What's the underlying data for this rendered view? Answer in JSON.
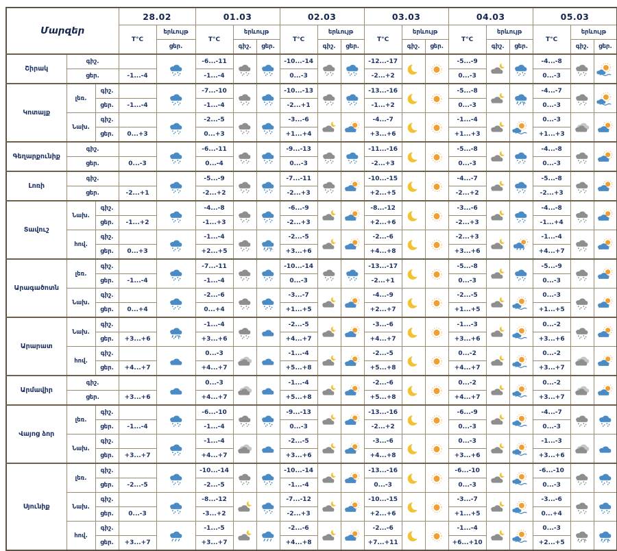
{
  "corner_title": "Մարզեր",
  "header": {
    "dates": [
      "28.02",
      "01.03",
      "02.03",
      "03.03",
      "04.03",
      "05.03"
    ],
    "temp_label": "T°C",
    "phenomenon_label": "երևույթ",
    "night_label": "գիշ.",
    "day_label": "ցեր."
  },
  "row_labels": {
    "night": "գիշ.",
    "day": "ցեր."
  },
  "day_format": [
    "temp_night",
    "temp_day",
    "icon_night",
    "icon_day"
  ],
  "icon_colors": {
    "cloud_gray": "#8e8e8e",
    "cloud_light_gray": "#c6c6c6",
    "cloud_blue": "#4a8bc6",
    "sun": "#f0a030",
    "sun_rays": "#edb15e",
    "moon": "#f1c232"
  },
  "style_colors": {
    "text_navy": "#1d3263",
    "border_inner": "#9a8a6e",
    "border_outer": "#5e5244"
  },
  "regions": [
    {
      "name": "Շիրակ",
      "zones": [
        {
          "label": null,
          "days": [
            [
              "",
              "-1...-4",
              null,
              "snow-blue"
            ],
            [
              "-6...-11",
              "-1...-4",
              "snow-gray",
              "snow-blue"
            ],
            [
              "-10...-14",
              "0...-3",
              "snow-gray",
              "snow-blue"
            ],
            [
              "-12...-17",
              "-2...+2",
              "moon",
              "sun"
            ],
            [
              "-5...-9",
              "0...-3",
              "cloud-moon",
              "snow-blue"
            ],
            [
              "-4...-8",
              "0...-3",
              "snow-gray",
              "sun-cloud-wave"
            ]
          ]
        }
      ]
    },
    {
      "name": "Կոտայք",
      "zones": [
        {
          "label": "լեռ.",
          "days": [
            [
              "",
              "-1...-4",
              null,
              "snow-blue"
            ],
            [
              "-7...-10",
              "-1...-4",
              "snow-gray",
              "snow-blue"
            ],
            [
              "-10...-13",
              "-2...+1",
              "snow-gray",
              "snow-blue"
            ],
            [
              "-13...-16",
              "-1...+2",
              "moon",
              "sun"
            ],
            [
              "-5...-8",
              "0...-3",
              "cloud-moon",
              "wetsnow-blue"
            ],
            [
              "-4...-7",
              "0...-3",
              "snow-gray",
              "sun-cloud-wave"
            ]
          ]
        },
        {
          "label": "Նախ.",
          "days": [
            [
              "",
              "0...+3",
              null,
              "snow-blue"
            ],
            [
              "-2...-5",
              "0...+3",
              "snow-gray",
              "snow-blue"
            ],
            [
              "-3...-6",
              "+1...+4",
              "cloud-moon",
              "sun-cloud"
            ],
            [
              "-4...-7",
              "+3...+6",
              "moon",
              "sun"
            ],
            [
              "-1...-4",
              "+1...+3",
              "cloud-moon",
              "sun-cloud-wave"
            ],
            [
              "0...-3",
              "+1...+3",
              "cloud-gray",
              "sun-cloud"
            ]
          ]
        }
      ]
    },
    {
      "name": "Գեղարքունիք",
      "zones": [
        {
          "label": null,
          "days": [
            [
              "",
              "0...-3",
              null,
              "snow-blue"
            ],
            [
              "-6...-11",
              "0...-4",
              "snow-gray",
              "snow-blue"
            ],
            [
              "-9...-13",
              "0...-3",
              "snow-gray",
              "snow-blue"
            ],
            [
              "-11...-16",
              "-2...+3",
              "moon",
              "sun"
            ],
            [
              "-5...-8",
              "0...-3",
              "cloud-moon",
              "snow-blue"
            ],
            [
              "-4...-8",
              "0...-3",
              "snow-gray",
              "sun-cloud"
            ]
          ]
        }
      ]
    },
    {
      "name": "Լոռի",
      "zones": [
        {
          "label": null,
          "days": [
            [
              "",
              "-2...+1",
              null,
              "snow-blue"
            ],
            [
              "-5...-9",
              "-2...+2",
              "snow-gray",
              "snow-blue"
            ],
            [
              "-7...-11",
              "-2...+3",
              "snow-gray",
              "sun-cloud"
            ],
            [
              "-10...-15",
              "+2...+5",
              "moon",
              "sun"
            ],
            [
              "-4...-7",
              "-2...+2",
              "cloud-moon",
              "snow-blue"
            ],
            [
              "-5...-8",
              "-2...+3",
              "snow-gray",
              "sun-cloud"
            ]
          ]
        }
      ]
    },
    {
      "name": "Տավուշ",
      "zones": [
        {
          "label": "Նախ.",
          "days": [
            [
              "",
              "-1...+2",
              null,
              "snow-blue"
            ],
            [
              "-4...-8",
              "-1...+3",
              "snow-gray",
              "snow-blue"
            ],
            [
              "-6...-9",
              "-2...+3",
              "cloud-moon",
              "sun-cloud"
            ],
            [
              "-8...-12",
              "+2...+6",
              "moon",
              "sun"
            ],
            [
              "-3...-6",
              "-2...+3",
              "cloud-moon",
              "snow-blue"
            ],
            [
              "-4...-8",
              "-1...+4",
              "snow-gray",
              "sun-cloud"
            ]
          ]
        },
        {
          "label": "հով.",
          "days": [
            [
              "",
              "0...+3",
              null,
              "snow-blue"
            ],
            [
              "-1...-4",
              "+2...+5",
              "snow-gray",
              "wetsnow-blue"
            ],
            [
              "-2...-5",
              "+3...+6",
              "cloud-moon",
              "sun-cloud"
            ],
            [
              "-2...-6",
              "+4...+8",
              "moon",
              "sun"
            ],
            [
              "-2...+3",
              "+3...+6",
              "cloud-moon",
              "sun-cloud-rain"
            ],
            [
              "-1...-4",
              "+4...+7",
              "snow-gray",
              "sun-cloud"
            ]
          ]
        }
      ]
    },
    {
      "name": "Արագածոտն",
      "zones": [
        {
          "label": "լեռ.",
          "days": [
            [
              "",
              "-1...-4",
              null,
              "snow-blue"
            ],
            [
              "-7...-11",
              "-1...-4",
              "snow-gray",
              "snow-blue"
            ],
            [
              "-10...-14",
              "0...-3",
              "snow-gray",
              "snow-blue"
            ],
            [
              "-13...-17",
              "-2...+1",
              "moon",
              "sun"
            ],
            [
              "-5...-8",
              "0...-3",
              "cloud-moon",
              "snow-blue"
            ],
            [
              "-5...-9",
              "0...-3",
              "snow-gray",
              "sun-cloud"
            ]
          ]
        },
        {
          "label": "Նախ.",
          "days": [
            [
              "",
              "0...+4",
              null,
              "snow-blue"
            ],
            [
              "-2...-6",
              "0...+4",
              "snow-gray",
              "snow-blue"
            ],
            [
              "-3...-7",
              "+1...+5",
              "cloud-moon",
              "sun-cloud"
            ],
            [
              "-4...-9",
              "+2...+7",
              "moon",
              "sun"
            ],
            [
              "-2...-5",
              "+1...+5",
              "cloud-moon",
              "sun-cloud-wave"
            ],
            [
              "0...-3",
              "+1...+5",
              "snow-gray",
              "sun-cloud"
            ]
          ]
        }
      ]
    },
    {
      "name": "Արարատ",
      "zones": [
        {
          "label": "Նախ.",
          "days": [
            [
              "",
              "+3...+6",
              null,
              "wetsnow-blue"
            ],
            [
              "-1...-4",
              "+3...+6",
              "snow-gray",
              "cloud-blue"
            ],
            [
              "-2...-5",
              "+4...+7",
              "cloud-moon",
              "sun-cloud"
            ],
            [
              "-3...-6",
              "+4...+7",
              "moon",
              "sun"
            ],
            [
              "-1...-3",
              "+3...+6",
              "cloud-moon",
              "sun-cloud-wave"
            ],
            [
              "0...-2",
              "+3...+6",
              "snow-gray",
              "sun-cloud"
            ]
          ]
        },
        {
          "label": "հով.",
          "days": [
            [
              "",
              "+4...+7",
              null,
              "cloud-blue"
            ],
            [
              "0...-3",
              "+4...+7",
              "cloud-gray",
              "cloud-blue"
            ],
            [
              "-1...-4",
              "+5...+8",
              "cloud-moon",
              "sun-cloud"
            ],
            [
              "-2...-5",
              "+5...+8",
              "moon",
              "sun"
            ],
            [
              "0...-2",
              "+4...+7",
              "cloud-moon",
              "sun-cloud-wave"
            ],
            [
              "0...-2",
              "+3...+7",
              "cloud-gray",
              "sun-cloud"
            ]
          ]
        }
      ]
    },
    {
      "name": "Արմավիր",
      "zones": [
        {
          "label": null,
          "days": [
            [
              "",
              "+3...+6",
              null,
              "cloud-blue"
            ],
            [
              "0...-3",
              "+4...+7",
              "cloud-gray",
              "cloud-blue"
            ],
            [
              "-1...-4",
              "+5...+8",
              "cloud-moon",
              "sun-cloud"
            ],
            [
              "-2...-6",
              "+5...+8",
              "moon",
              "sun"
            ],
            [
              "0...-2",
              "+4...+7",
              "cloud-moon",
              "sun-cloud-wave"
            ],
            [
              "0...-2",
              "+3...+7",
              "cloud-gray",
              "sun-cloud"
            ]
          ]
        }
      ]
    },
    {
      "name": "Վայոց ձոր",
      "zones": [
        {
          "label": "լեռ.",
          "days": [
            [
              "",
              "-1...-4",
              null,
              "snow-blue"
            ],
            [
              "-6...-10",
              "-1...-4",
              "snow-gray",
              "snow-blue"
            ],
            [
              "-9...-13",
              "0...-3",
              "cloud-moon",
              "sun-cloud"
            ],
            [
              "-13...-16",
              "-2...+2",
              "moon",
              "sun"
            ],
            [
              "-6...-9",
              "0...-3",
              "cloud-moon",
              "sun-cloud-wave"
            ],
            [
              "-4...-7",
              "0...-3",
              "snow-gray",
              "snow-blue"
            ]
          ]
        },
        {
          "label": "Նախ.",
          "days": [
            [
              "",
              "+3...+7",
              null,
              "snow-blue"
            ],
            [
              "-1...-4",
              "+4...+7",
              "cloud-gray",
              "cloud-blue"
            ],
            [
              "-2...-5",
              "+3...+6",
              "cloud-moon",
              "sun-cloud"
            ],
            [
              "-3...-6",
              "+4...+8",
              "moon",
              "sun"
            ],
            [
              "0...-3",
              "+3...+6",
              "cloud-moon",
              "sun-cloud-wave"
            ],
            [
              "-1...-3",
              "+3...+6",
              "cloud-gray",
              "cloud-blue"
            ]
          ]
        }
      ]
    },
    {
      "name": "Սյունիք",
      "zones": [
        {
          "label": "լեռ.",
          "days": [
            [
              "",
              "-2...-5",
              null,
              "snow-blue"
            ],
            [
              "-10...-14",
              "-2...-5",
              "snow-gray",
              "snow-blue"
            ],
            [
              "-10...-14",
              "-1...-4",
              "cloud-moon",
              "sun-cloud"
            ],
            [
              "-13...-16",
              "0...-3",
              "moon",
              "sun"
            ],
            [
              "-6...-10",
              "0...-3",
              "cloud-moon",
              "sun-cloud-wave"
            ],
            [
              "-6...-10",
              "0...-3",
              "snow-gray",
              "snow-blue"
            ]
          ]
        },
        {
          "label": "Նախ.",
          "days": [
            [
              "",
              "0...-3",
              null,
              "snow-blue"
            ],
            [
              "-8...-12",
              "-3...+2",
              "cloud-moon",
              "snow-blue"
            ],
            [
              "-7...-12",
              "-2...+3",
              "cloud-moon",
              "sun-cloud"
            ],
            [
              "-10...-15",
              "+2...+6",
              "moon",
              "sun"
            ],
            [
              "-3...-7",
              "+1...+5",
              "cloud-moon",
              "sun-cloud-wave"
            ],
            [
              "-3...-6",
              "0...+4",
              "snow-gray",
              "snow-blue"
            ]
          ]
        },
        {
          "label": "հով.",
          "days": [
            [
              "",
              "+3...+7",
              null,
              "rain-blue"
            ],
            [
              "-1...-5",
              "+3...+7",
              "cloud-moon",
              "rain-blue"
            ],
            [
              "-2...-6",
              "+4...+8",
              "cloud-moon",
              "sun-cloud"
            ],
            [
              "-2...-6",
              "+7...+11",
              "moon",
              "sun"
            ],
            [
              "-1...-4",
              "+6...+10",
              "cloud-moon",
              "sun-cloud-wave"
            ],
            [
              "0...-3",
              "+2...+5",
              "wetsnow-gray",
              "wetsnow-blue"
            ]
          ]
        }
      ]
    }
  ]
}
